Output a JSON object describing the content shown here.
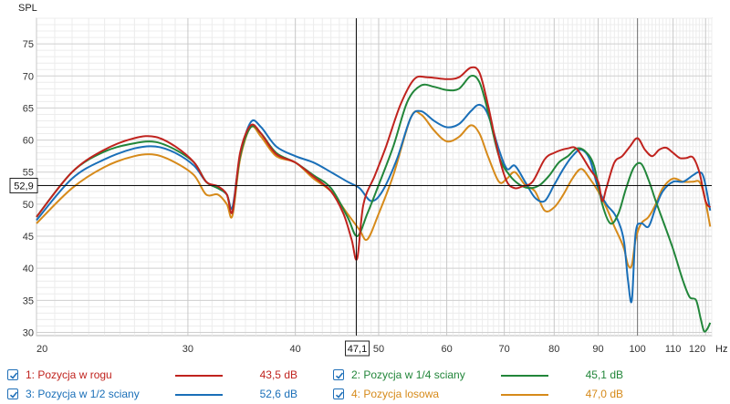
{
  "chart_data": {
    "type": "line",
    "ylabel": "SPL",
    "xunit": "Hz",
    "xscale": "log",
    "xlim": [
      20,
      122
    ],
    "ylim": [
      29.5,
      79
    ],
    "x_major_ticks": [
      20,
      30,
      40,
      50,
      60,
      70,
      80,
      90,
      100,
      110,
      120
    ],
    "x_tick_labels": [
      "20",
      "30",
      "40",
      "50",
      "60",
      "70",
      "80",
      "90",
      "100",
      "110",
      "120"
    ],
    "y_ticks": [
      30,
      35,
      40,
      45,
      50,
      55,
      60,
      65,
      70,
      75
    ],
    "y_tick_labels": [
      "30",
      "35",
      "40",
      "45",
      "50",
      "55",
      "60",
      "65",
      "70",
      "75"
    ],
    "grid": true,
    "cursor": {
      "x": 47.1,
      "y": 52.9,
      "x_label": "47,1",
      "y_label": "52,9"
    },
    "marker_line_x": 100,
    "series": [
      {
        "name": "1: Pozycja w rogu",
        "value_label": "43,5 dB",
        "color": "#c0231e",
        "x": [
          20,
          22,
          24,
          26,
          27.5,
          29,
          30.5,
          31.5,
          32.5,
          33.3,
          33.8,
          34.5,
          35.5,
          36.5,
          38,
          40,
          42,
          44,
          45.5,
          46.5,
          47.2,
          48,
          49.5,
          51,
          53,
          55,
          57,
          60,
          62,
          64,
          65.5,
          67,
          69,
          70.5,
          72,
          73.5,
          75.5,
          78,
          80,
          83,
          85,
          88,
          90,
          91,
          92,
          94,
          96,
          98,
          100,
          102,
          104,
          106,
          108,
          110,
          112,
          114,
          116,
          118,
          120,
          121.5
        ],
        "y": [
          48,
          55,
          58.5,
          60.3,
          60.5,
          59,
          56.5,
          53.5,
          52.8,
          51.5,
          48.8,
          58,
          62.3,
          61,
          57.8,
          56.5,
          54.3,
          52,
          48.5,
          44.5,
          41.5,
          50,
          54.5,
          59,
          65.5,
          69.5,
          69.8,
          69.5,
          69.8,
          71.3,
          70.5,
          65.5,
          57.5,
          53.5,
          52.5,
          52.8,
          53.5,
          57,
          58,
          58.7,
          58.6,
          55.5,
          53.5,
          50.5,
          52.5,
          56.5,
          57.5,
          59,
          60.3,
          58.5,
          57.5,
          58.5,
          58.8,
          58,
          57.2,
          57.2,
          57.3,
          55,
          50.5,
          49.5
        ]
      },
      {
        "name": "2: Pozycja w 1/4 sciany",
        "value_label": "45,1 dB",
        "color": "#22863a",
        "x": [
          20,
          22,
          24,
          26,
          27.5,
          29,
          30.5,
          31.5,
          32.5,
          33.3,
          33.8,
          34.5,
          35.5,
          36.5,
          38,
          40,
          42,
          44,
          46,
          47.2,
          48.5,
          50,
          52,
          54,
          56,
          58,
          60,
          62,
          64,
          65.5,
          67,
          69,
          71,
          73,
          75,
          77,
          79,
          81,
          83,
          85,
          87,
          89,
          91,
          93,
          95,
          97,
          99,
          101,
          103,
          105,
          107,
          110,
          113,
          115,
          117,
          118.5,
          119.5,
          120.5,
          121.5
        ],
        "y": [
          48,
          55,
          58.2,
          59.5,
          59.7,
          58.5,
          56.5,
          53.5,
          52.5,
          51.5,
          48.8,
          57.5,
          62,
          61,
          58,
          56.5,
          54.5,
          52.5,
          48,
          45,
          48.5,
          53,
          59,
          66,
          68.5,
          68.3,
          67.8,
          68,
          70,
          69,
          64.5,
          57.5,
          54.5,
          53,
          52.5,
          53,
          54.5,
          56.5,
          57.5,
          58.7,
          58.2,
          56,
          50,
          47,
          48.5,
          52.5,
          55.7,
          56.3,
          53.8,
          50.5,
          47.5,
          43,
          38,
          35.5,
          35,
          32,
          30.2,
          30.5,
          31.5
        ]
      },
      {
        "name": "3: Pozycja w 1/2 sciany",
        "value_label": "52,6 dB",
        "color": "#1a6fb8",
        "x": [
          20,
          22,
          24,
          26,
          27.5,
          29,
          30.5,
          31.5,
          32.5,
          33.3,
          33.8,
          34.5,
          35.5,
          36.5,
          38,
          40,
          42,
          44,
          46,
          47.5,
          49,
          50.5,
          52.5,
          54.5,
          56,
          58,
          60,
          62,
          64,
          65.5,
          67,
          69,
          70.5,
          72,
          74,
          76,
          78,
          80,
          82,
          84,
          86,
          88,
          90,
          92,
          94,
          95.5,
          96.5,
          97.5,
          98.5,
          99.5,
          101,
          103,
          105,
          107,
          110,
          113,
          116,
          118,
          119.5,
          121.5
        ],
        "y": [
          47.5,
          54,
          57,
          58.7,
          59,
          58,
          56,
          53.5,
          52.5,
          51.5,
          49.5,
          57.5,
          62.8,
          62,
          59,
          57.5,
          56.5,
          55,
          53.5,
          52.5,
          50.5,
          52,
          57,
          63.5,
          64.5,
          63,
          62,
          62.5,
          64.5,
          65.5,
          64,
          58.5,
          55.5,
          56,
          53.5,
          51,
          50.5,
          53,
          55.5,
          57.5,
          58.5,
          57,
          52.5,
          50,
          48.5,
          46.5,
          44,
          38,
          35,
          45.5,
          47,
          46.5,
          49.5,
          52,
          53.5,
          53.5,
          54.5,
          55,
          54,
          49
        ]
      },
      {
        "name": "4: Pozycja losowa",
        "value_label": "47,0 dB",
        "color": "#d68a1a",
        "x": [
          20,
          22,
          24,
          26,
          27.5,
          29,
          30.5,
          31.5,
          32.5,
          33.3,
          33.8,
          34.5,
          35.5,
          36.5,
          38,
          40,
          42,
          44,
          46,
          47.5,
          48.5,
          50,
          52,
          54.5,
          56,
          58,
          60,
          62,
          64,
          65.5,
          67,
          69,
          70.5,
          72,
          74,
          76,
          78,
          80,
          82,
          84,
          86,
          88,
          90,
          92,
          94,
          95.5,
          96.5,
          97.5,
          98.5,
          99.5,
          101,
          103,
          105,
          107,
          110,
          113,
          116,
          118,
          119.5,
          121.5
        ],
        "y": [
          47,
          52.5,
          55.8,
          57.5,
          57.7,
          56.5,
          54.5,
          51.5,
          51.5,
          50,
          48.2,
          57,
          62,
          60.5,
          57.5,
          56.5,
          54,
          52,
          48.5,
          46,
          44.5,
          48.5,
          54.5,
          63.5,
          64,
          61.5,
          59.8,
          60.5,
          62.3,
          61,
          57.5,
          53.5,
          54,
          55,
          53,
          52,
          49,
          49.5,
          51.5,
          54,
          55.5,
          54,
          52,
          49.5,
          46.5,
          44.5,
          43,
          40.5,
          40.5,
          44.5,
          47,
          48,
          50,
          52.5,
          54,
          53.5,
          53.5,
          53.5,
          51.5,
          46.5
        ]
      }
    ]
  }
}
